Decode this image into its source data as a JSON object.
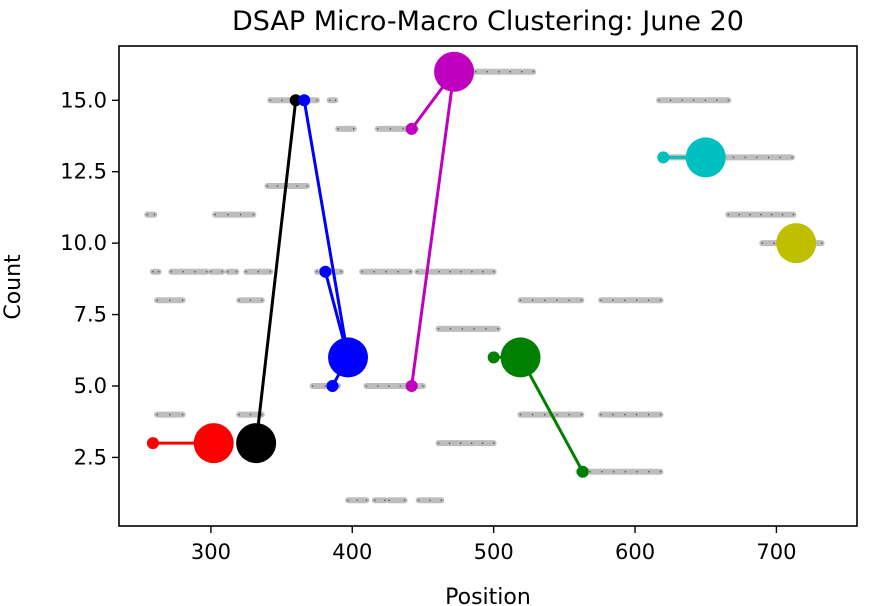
{
  "chart_data": {
    "type": "scatter",
    "title": "DSAP Micro-Macro Clustering: June 20",
    "xlabel": "Position",
    "ylabel": "Count",
    "xlim": [
      235,
      757
    ],
    "ylim": [
      0.1,
      16.9
    ],
    "x_ticks": [
      300,
      400,
      500,
      600,
      700
    ],
    "y_ticks": [
      2.5,
      5.0,
      7.5,
      10.0,
      12.5,
      15.0
    ],
    "x_tick_labels": [
      "300",
      "400",
      "500",
      "600",
      "700"
    ],
    "y_tick_labels": [
      "2.5",
      "5.0",
      "7.5",
      "10.0",
      "12.5",
      "15.0"
    ],
    "grid": false,
    "background_segments": [
      {
        "x0": 255,
        "x1": 260,
        "y": 11
      },
      {
        "x0": 259,
        "x1": 263,
        "y": 9
      },
      {
        "x0": 262,
        "x1": 280,
        "y": 8
      },
      {
        "x0": 262,
        "x1": 280,
        "y": 4
      },
      {
        "x0": 272,
        "x1": 297,
        "y": 9
      },
      {
        "x0": 300,
        "x1": 308,
        "y": 9
      },
      {
        "x0": 303,
        "x1": 330,
        "y": 11
      },
      {
        "x0": 312,
        "x1": 318,
        "y": 9
      },
      {
        "x0": 320,
        "x1": 336,
        "y": 8
      },
      {
        "x0": 320,
        "x1": 336,
        "y": 4
      },
      {
        "x0": 325,
        "x1": 342,
        "y": 9
      },
      {
        "x0": 340,
        "x1": 368,
        "y": 12
      },
      {
        "x0": 342,
        "x1": 375,
        "y": 15
      },
      {
        "x0": 375,
        "x1": 392,
        "y": 9
      },
      {
        "x0": 372,
        "x1": 390,
        "y": 5
      },
      {
        "x0": 384,
        "x1": 388,
        "y": 15
      },
      {
        "x0": 390,
        "x1": 401,
        "y": 14
      },
      {
        "x0": 397,
        "x1": 410,
        "y": 1
      },
      {
        "x0": 407,
        "x1": 441,
        "y": 9
      },
      {
        "x0": 418,
        "x1": 445,
        "y": 14
      },
      {
        "x0": 410,
        "x1": 450,
        "y": 5
      },
      {
        "x0": 416,
        "x1": 423,
        "y": 1
      },
      {
        "x0": 426,
        "x1": 437,
        "y": 1
      },
      {
        "x0": 447,
        "x1": 463,
        "y": 1
      },
      {
        "x0": 446,
        "x1": 500,
        "y": 9
      },
      {
        "x0": 461,
        "x1": 503,
        "y": 7
      },
      {
        "x0": 461,
        "x1": 500,
        "y": 3
      },
      {
        "x0": 463,
        "x1": 528,
        "y": 16
      },
      {
        "x0": 519,
        "x1": 562,
        "y": 8
      },
      {
        "x0": 519,
        "x1": 562,
        "y": 4
      },
      {
        "x0": 560,
        "x1": 618,
        "y": 2
      },
      {
        "x0": 576,
        "x1": 618,
        "y": 8
      },
      {
        "x0": 576,
        "x1": 618,
        "y": 4
      },
      {
        "x0": 617,
        "x1": 666,
        "y": 15
      },
      {
        "x0": 620,
        "x1": 711,
        "y": 13
      },
      {
        "x0": 666,
        "x1": 712,
        "y": 11
      },
      {
        "x0": 690,
        "x1": 732,
        "y": 10
      }
    ],
    "series": [
      {
        "color": "#ff0000",
        "macro": {
          "x": 302,
          "y": 3
        },
        "micro": [
          {
            "x": 259,
            "y": 3
          }
        ]
      },
      {
        "color": "#000000",
        "macro": {
          "x": 332,
          "y": 3
        },
        "micro": [
          {
            "x": 360,
            "y": 15
          }
        ]
      },
      {
        "color": "#0000ff",
        "macro": {
          "x": 397,
          "y": 6
        },
        "micro": [
          {
            "x": 366,
            "y": 15
          },
          {
            "x": 381,
            "y": 9
          },
          {
            "x": 386,
            "y": 5
          }
        ]
      },
      {
        "color": "#bf00bf",
        "macro": {
          "x": 472,
          "y": 16
        },
        "micro": [
          {
            "x": 442,
            "y": 14
          },
          {
            "x": 442,
            "y": 5
          }
        ]
      },
      {
        "color": "#008000",
        "macro": {
          "x": 519,
          "y": 6
        },
        "micro": [
          {
            "x": 500,
            "y": 6
          },
          {
            "x": 563,
            "y": 2
          }
        ]
      },
      {
        "color": "#00bfbf",
        "macro": {
          "x": 650,
          "y": 13
        },
        "micro": [
          {
            "x": 620,
            "y": 13
          }
        ]
      },
      {
        "color": "#bfbf00",
        "macro": {
          "x": 714,
          "y": 10
        },
        "micro": []
      }
    ]
  }
}
